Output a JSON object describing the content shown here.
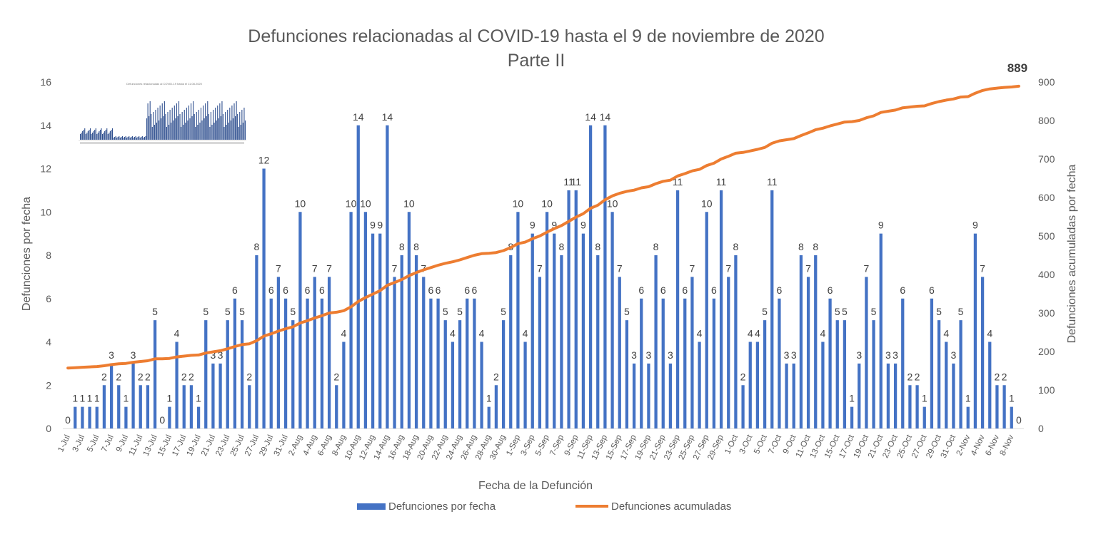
{
  "chart_data": {
    "type": "bar",
    "title": "Defunciones relacionadas al COVID-19 hasta el 9 de noviembre de 2020",
    "subtitle": "Parte II",
    "xlabel": "Fecha de la Defunción",
    "ylabel": "Defunciones por fecha",
    "y2label": "Defunciones acumuladas por fecha",
    "ylim": [
      0,
      16
    ],
    "y2lim": [
      0,
      900
    ],
    "yticks": [
      "0",
      "2",
      "4",
      "6",
      "8",
      "10",
      "12",
      "14",
      "16"
    ],
    "y2ticks": [
      "0",
      "100",
      "200",
      "300",
      "400",
      "500",
      "600",
      "700",
      "800",
      "900"
    ],
    "legend_position": "bottom",
    "grid": false,
    "categories": [
      "1-Jul",
      "2-Jul",
      "3-Jul",
      "4-Jul",
      "5-Jul",
      "6-Jul",
      "7-Jul",
      "8-Jul",
      "9-Jul",
      "10-Jul",
      "11-Jul",
      "12-Jul",
      "13-Jul",
      "14-Jul",
      "15-Jul",
      "16-Jul",
      "17-Jul",
      "18-Jul",
      "19-Jul",
      "20-Jul",
      "21-Jul",
      "22-Jul",
      "23-Jul",
      "24-Jul",
      "25-Jul",
      "26-Jul",
      "27-Jul",
      "28-Jul",
      "29-Jul",
      "30-Jul",
      "31-Jul",
      "1-Aug",
      "2-Aug",
      "3-Aug",
      "4-Aug",
      "5-Aug",
      "6-Aug",
      "7-Aug",
      "8-Aug",
      "9-Aug",
      "10-Aug",
      "11-Aug",
      "12-Aug",
      "13-Aug",
      "14-Aug",
      "15-Aug",
      "16-Aug",
      "17-Aug",
      "18-Aug",
      "19-Aug",
      "20-Aug",
      "21-Aug",
      "22-Aug",
      "23-Aug",
      "24-Aug",
      "25-Aug",
      "26-Aug",
      "27-Aug",
      "28-Aug",
      "29-Aug",
      "30-Aug",
      "31-Aug",
      "1-Sep",
      "2-Sep",
      "3-Sep",
      "4-Sep",
      "5-Sep",
      "6-Sep",
      "7-Sep",
      "8-Sep",
      "9-Sep",
      "10-Sep",
      "11-Sep",
      "12-Sep",
      "13-Sep",
      "14-Sep",
      "15-Sep",
      "16-Sep",
      "17-Sep",
      "18-Sep",
      "19-Sep",
      "20-Sep",
      "21-Sep",
      "22-Sep",
      "23-Sep",
      "24-Sep",
      "25-Sep",
      "26-Sep",
      "27-Sep",
      "28-Sep",
      "29-Sep",
      "30-Sep",
      "1-Oct",
      "2-Oct",
      "3-Oct",
      "4-Oct",
      "5-Oct",
      "6-Oct",
      "7-Oct",
      "8-Oct",
      "9-Oct",
      "10-Oct",
      "11-Oct",
      "12-Oct",
      "13-Oct",
      "14-Oct",
      "15-Oct",
      "16-Oct",
      "17-Oct",
      "18-Oct",
      "19-Oct",
      "20-Oct",
      "21-Oct",
      "22-Oct",
      "23-Oct",
      "24-Oct",
      "25-Oct",
      "26-Oct",
      "27-Oct",
      "28-Oct",
      "29-Oct",
      "30-Oct",
      "31-Oct",
      "1-Nov",
      "2-Nov",
      "3-Nov",
      "4-Nov",
      "5-Nov",
      "6-Nov",
      "7-Nov",
      "8-Nov",
      "9-Nov"
    ],
    "series": [
      {
        "name": "Defunciones por fecha",
        "type": "bar",
        "color": "#4472C4",
        "values": [
          0,
          1,
          1,
          1,
          1,
          2,
          3,
          2,
          1,
          3,
          2,
          2,
          5,
          0,
          1,
          4,
          2,
          2,
          1,
          5,
          3,
          3,
          5,
          6,
          5,
          2,
          8,
          12,
          6,
          7,
          6,
          5,
          10,
          6,
          7,
          6,
          7,
          2,
          4,
          10,
          14,
          10,
          9,
          9,
          14,
          7,
          8,
          10,
          8,
          7,
          6,
          6,
          5,
          4,
          5,
          6,
          6,
          4,
          1,
          2,
          5,
          8,
          10,
          4,
          9,
          7,
          10,
          9,
          8,
          11,
          11,
          9,
          14,
          8,
          14,
          10,
          7,
          5,
          3,
          6,
          3,
          8,
          6,
          3,
          11,
          6,
          7,
          4,
          10,
          6,
          11,
          7,
          8,
          2,
          4,
          4,
          5,
          11,
          6,
          3,
          3,
          8,
          7,
          8,
          4,
          6,
          5,
          5,
          1,
          3,
          7,
          5,
          9,
          3,
          3,
          6,
          2,
          2,
          1,
          6,
          5,
          4,
          3,
          5,
          1,
          9,
          7,
          4,
          2,
          2,
          1,
          0
        ]
      },
      {
        "name": "Defunciones acumuladas",
        "type": "line",
        "color": "#ED7D31",
        "values": [
          157,
          158,
          159,
          160,
          161,
          163,
          166,
          168,
          169,
          172,
          174,
          176,
          181,
          181,
          182,
          186,
          188,
          190,
          191,
          196,
          199,
          202,
          207,
          213,
          218,
          220,
          228,
          240,
          246,
          253,
          259,
          264,
          274,
          280,
          287,
          293,
          300,
          302,
          306,
          316,
          330,
          340,
          349,
          358,
          372,
          379,
          387,
          397,
          405,
          412,
          418,
          424,
          429,
          433,
          438,
          444,
          450,
          454,
          455,
          457,
          462,
          470,
          480,
          484,
          493,
          500,
          510,
          519,
          527,
          538,
          549,
          558,
          572,
          580,
          594,
          604,
          611,
          616,
          619,
          625,
          628,
          636,
          642,
          645,
          656,
          662,
          669,
          673,
          683,
          689,
          700,
          707,
          715,
          717,
          721,
          725,
          730,
          741,
          747,
          750,
          753,
          761,
          768,
          776,
          780,
          786,
          791,
          796,
          797,
          800,
          807,
          812,
          821,
          824,
          827,
          833,
          835,
          837,
          838,
          844,
          849,
          853,
          856,
          861,
          862,
          871,
          878,
          882,
          884,
          886,
          887,
          889
        ]
      }
    ],
    "final_label": "889"
  }
}
